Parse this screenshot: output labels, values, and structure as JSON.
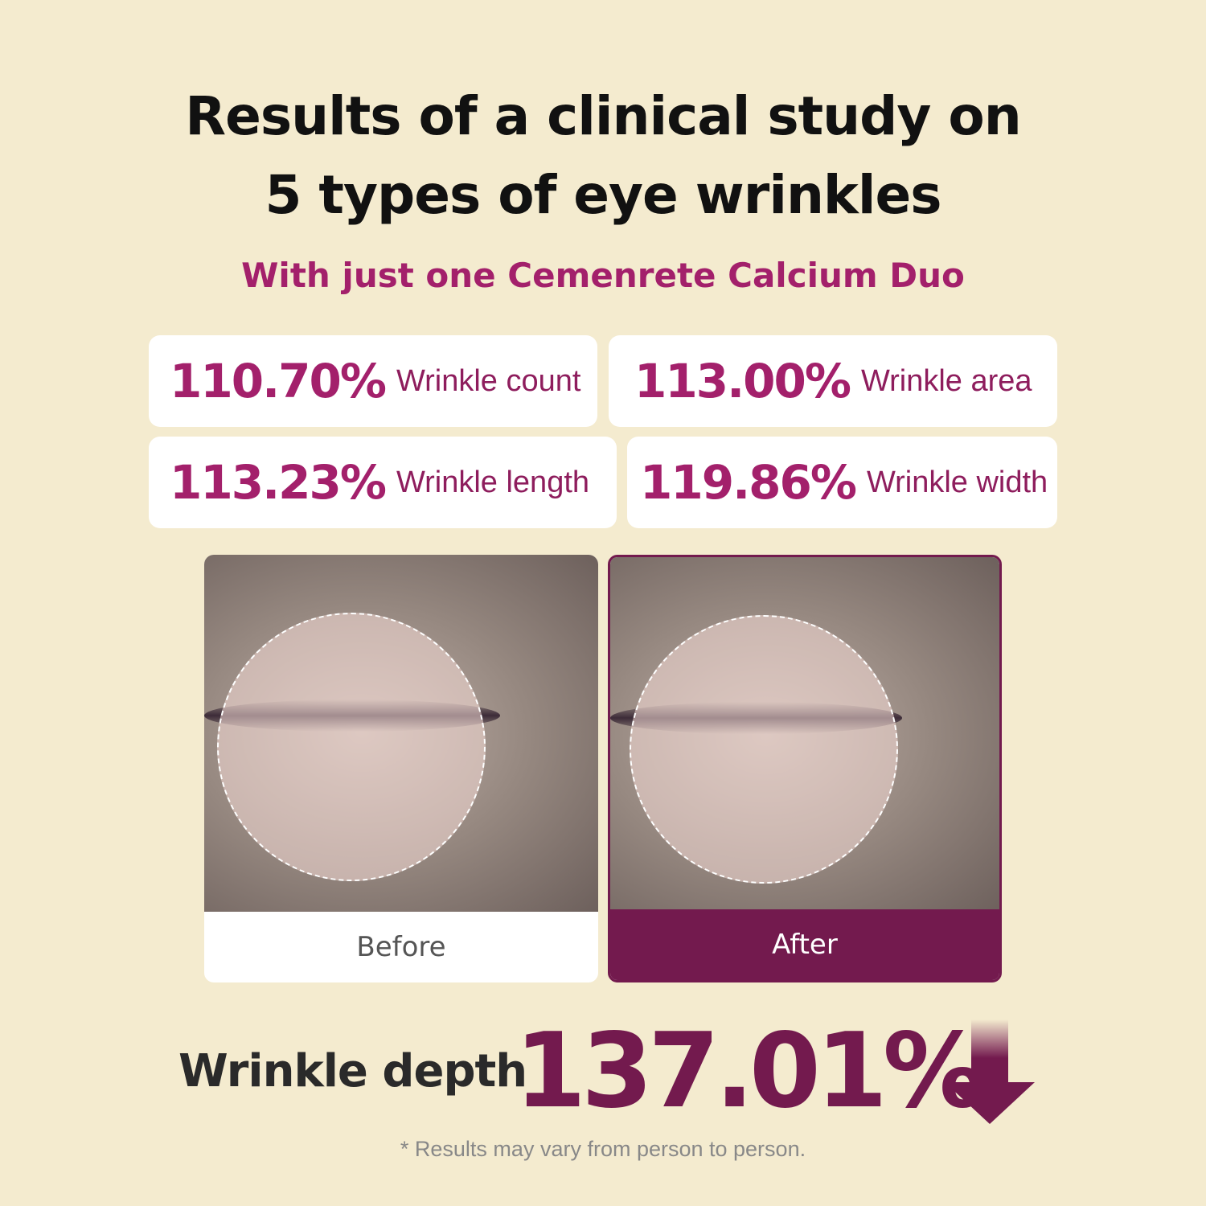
{
  "title_line1": "Results of a clinical study on",
  "title_line2": "5 types of eye wrinkles",
  "subtitle": "With just one Cemenrete Calcium Duo",
  "stats": [
    {
      "value": "110.70%",
      "label": "Wrinkle count"
    },
    {
      "value": "113.00%",
      "label": "Wrinkle area"
    },
    {
      "value": "113.23%",
      "label": "Wrinkle length"
    },
    {
      "value": "119.86%",
      "label": "Wrinkle width"
    }
  ],
  "comparison": {
    "before": "Before",
    "after": "After"
  },
  "depth": {
    "label": "Wrinkle depth",
    "value": "137.01%",
    "icon": "arrow-down-icon"
  },
  "disclaimer": "* Results may vary from person to person.",
  "colors": {
    "background": "#f4ebcf",
    "accent": "#a3206b",
    "dark_accent": "#731a4e"
  }
}
